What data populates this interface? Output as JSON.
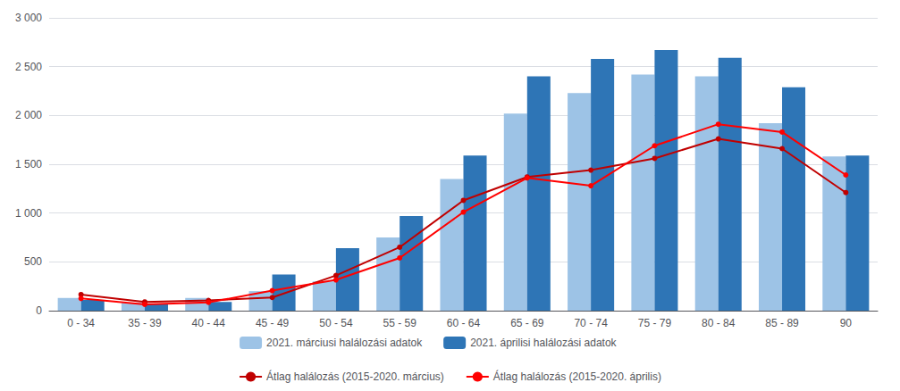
{
  "chart_data": {
    "type": "bar",
    "categories": [
      "0 - 34",
      "35 - 39",
      "40 - 44",
      "45 - 49",
      "50 - 54",
      "55 - 59",
      "60 - 64",
      "65 - 69",
      "70 - 74",
      "75 - 79",
      "80 - 84",
      "85 - 89",
      "90"
    ],
    "series": [
      {
        "name": "2021. márciusi halálozási adatok",
        "type": "bar",
        "color": "#9DC3E6",
        "values": [
          130,
          80,
          130,
          200,
          300,
          750,
          1350,
          2020,
          2230,
          2420,
          2400,
          1920,
          1580
        ]
      },
      {
        "name": "2021. áprilisi halálozási adatok",
        "type": "bar",
        "color": "#2E75B6",
        "values": [
          110,
          70,
          90,
          370,
          640,
          970,
          1590,
          2400,
          2580,
          2670,
          2590,
          2290,
          1590
        ]
      },
      {
        "name": "Átlag halálozás (2015-2020. március)",
        "type": "line",
        "color": "#C00000",
        "marker": "circle",
        "values": [
          165,
          90,
          105,
          135,
          360,
          650,
          1130,
          1370,
          1440,
          1560,
          1760,
          1660,
          1210
        ]
      },
      {
        "name": "Átlag halálozás (2015-2020. április)",
        "type": "line",
        "color": "#FF0000",
        "marker": "circle",
        "values": [
          125,
          65,
          85,
          205,
          315,
          540,
          1010,
          1360,
          1280,
          1690,
          1910,
          1830,
          1390
        ]
      }
    ],
    "ylim": [
      0,
      3000
    ],
    "yticks": [
      0,
      500,
      {
        "value": 1000,
        "label": "1 000"
      },
      {
        "value": 1500,
        "label": "1 500"
      },
      {
        "value": 2000,
        "label": "2 000"
      },
      {
        "value": 2500,
        "label": "2 500"
      },
      {
        "value": 3000,
        "label": "3 000"
      }
    ],
    "grid": true,
    "legend": "bottom"
  }
}
